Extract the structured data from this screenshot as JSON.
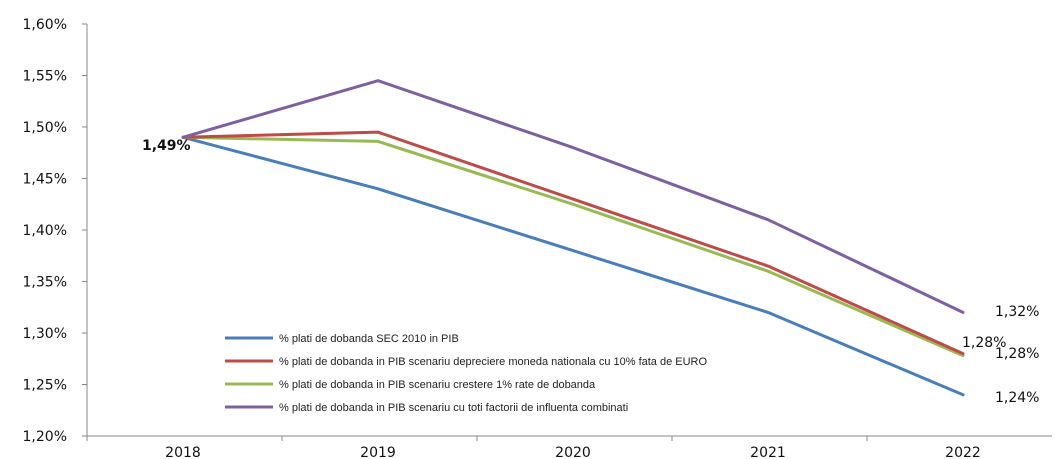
{
  "chart_data": {
    "type": "line",
    "categories": [
      "2018",
      "2019",
      "2020",
      "2021",
      "2022"
    ],
    "y_tick_labels": [
      "1,20%",
      "1,25%",
      "1,30%",
      "1,35%",
      "1,40%",
      "1,45%",
      "1,50%",
      "1,55%",
      "1,60%"
    ],
    "ylim": [
      1.2,
      1.6
    ],
    "y_unit": "%",
    "grid": false,
    "legend_position": "bottom-left inside plot",
    "series": [
      {
        "name": "% plati de dobanda SEC 2010 in PIB",
        "color": "#4a7ebb",
        "values": [
          1.49,
          1.44,
          1.38,
          1.32,
          1.24
        ]
      },
      {
        "name": "% plati de dobanda in PIB scenariu depreciere moneda nationala cu 10% fata de  EURO",
        "color": "#be4b48",
        "values": [
          1.49,
          1.495,
          1.43,
          1.365,
          1.28
        ]
      },
      {
        "name": "% plati de dobanda in PIB scenariu crestere 1% rate de dobanda",
        "color": "#98b954",
        "values": [
          1.49,
          1.486,
          1.425,
          1.36,
          1.278
        ]
      },
      {
        "name": "% plati de dobanda in PIB scenariu cu toti factorii de influenta combinati",
        "color": "#7d60a0",
        "values": [
          1.49,
          1.545,
          1.48,
          1.41,
          1.32
        ]
      }
    ],
    "annotations": [
      {
        "text": "1,49%",
        "anchor": "2018"
      },
      {
        "text": "1,32%",
        "anchor": "2022"
      },
      {
        "text": "1,28%",
        "anchor": "2022"
      },
      {
        "text": "1,28%",
        "anchor": "2022"
      },
      {
        "text": "1,24%",
        "anchor": "2022"
      }
    ]
  }
}
